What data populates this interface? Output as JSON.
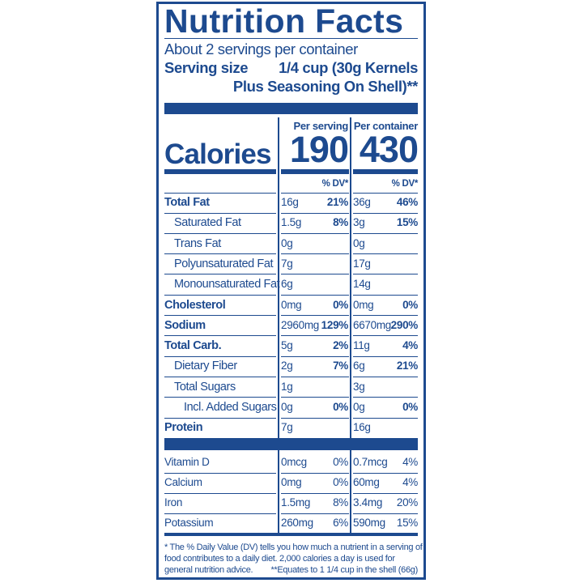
{
  "title": "Nutrition Facts",
  "servings": "About 2 servings per container",
  "serving_size_label": "Serving size",
  "serving_size": [
    "1/4 cup (30g Kernels",
    "Plus Seasoning On Shell)**"
  ],
  "columns": [
    "Per serving",
    "Per container"
  ],
  "calories_label": "Calories",
  "calories": [
    "190",
    "430"
  ],
  "dv_header": [
    "% DV*",
    "% DV*"
  ],
  "nutrients": [
    {
      "name": "Total Fat",
      "bold": true,
      "indent": 0,
      "amounts": [
        "16g",
        "36g"
      ],
      "dv": [
        "21%",
        "46%"
      ]
    },
    {
      "name": "Saturated Fat",
      "bold": false,
      "indent": 1,
      "amounts": [
        "1.5g",
        "3g"
      ],
      "dv": [
        "8%",
        "15%"
      ]
    },
    {
      "name": "Trans Fat",
      "bold": false,
      "indent": 1,
      "amounts": [
        "0g",
        "0g"
      ]
    },
    {
      "name": "Polyunsaturated Fat",
      "bold": false,
      "indent": 1,
      "amounts": [
        "7g",
        "17g"
      ]
    },
    {
      "name": "Monounsaturated Fat",
      "bold": false,
      "indent": 1,
      "amounts": [
        "6g",
        "14g"
      ]
    },
    {
      "name": "Cholesterol",
      "bold": true,
      "indent": 0,
      "amounts": [
        "0mg",
        "0mg"
      ],
      "dv": [
        "0%",
        "0%"
      ]
    },
    {
      "name": "Sodium",
      "bold": true,
      "indent": 0,
      "amounts": [
        "2960mg",
        "6670mg"
      ],
      "dv": [
        "129%",
        "290%"
      ]
    },
    {
      "name": "Total Carb.",
      "bold": true,
      "indent": 0,
      "amounts": [
        "5g",
        "11g"
      ],
      "dv": [
        "2%",
        "4%"
      ]
    },
    {
      "name": "Dietary Fiber",
      "bold": false,
      "indent": 1,
      "amounts": [
        "2g",
        "6g"
      ],
      "dv": [
        "7%",
        "21%"
      ]
    },
    {
      "name": "Total Sugars",
      "bold": false,
      "indent": 1,
      "amounts": [
        "1g",
        "3g"
      ]
    },
    {
      "name": "Incl. Added Sugars",
      "bold": false,
      "indent": 2,
      "amounts": [
        "0g",
        "0g"
      ],
      "dv": [
        "0%",
        "0%"
      ]
    },
    {
      "name": "Protein",
      "bold": true,
      "indent": 0,
      "amounts": [
        "7g",
        "16g"
      ]
    }
  ],
  "vitamins": [
    {
      "name": "Vitamin D",
      "amounts": [
        "0mcg",
        "0.7mcg"
      ],
      "dv": [
        "0%",
        "4%"
      ]
    },
    {
      "name": "Calcium",
      "amounts": [
        "0mg",
        "60mg"
      ],
      "dv": [
        "0%",
        "4%"
      ]
    },
    {
      "name": "Iron",
      "amounts": [
        "1.5mg",
        "3.4mg"
      ],
      "dv": [
        "8%",
        "20%"
      ]
    },
    {
      "name": "Potassium",
      "amounts": [
        "260mg",
        "590mg"
      ],
      "dv": [
        "6%",
        "15%"
      ]
    }
  ],
  "footnote": [
    "* The % Daily Value (DV) tells you how much a nutrient in a serving of",
    "food contributes to a daily diet. 2,000 calories a day is used for",
    "general nutrition advice."
  ],
  "shell_note": "**Equates to 1 1/4 cup in the shell (66g)"
}
